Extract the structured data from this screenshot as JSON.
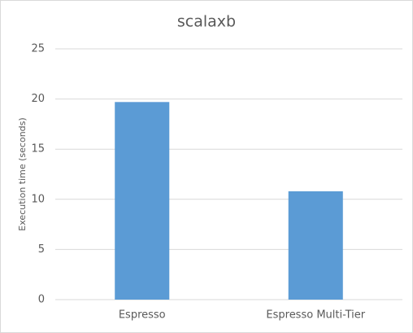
{
  "chart_data": {
    "type": "bar",
    "title": "scalaxb",
    "y_label": "Execution time (seconds)",
    "categories": [
      "Espresso",
      "Espresso Multi-Tier"
    ],
    "values": [
      19.7,
      10.8
    ],
    "color": "#5b9bd5",
    "ylim": [
      0,
      25
    ],
    "yticks": [
      0,
      5,
      10,
      15,
      20,
      25
    ],
    "grid": true
  }
}
